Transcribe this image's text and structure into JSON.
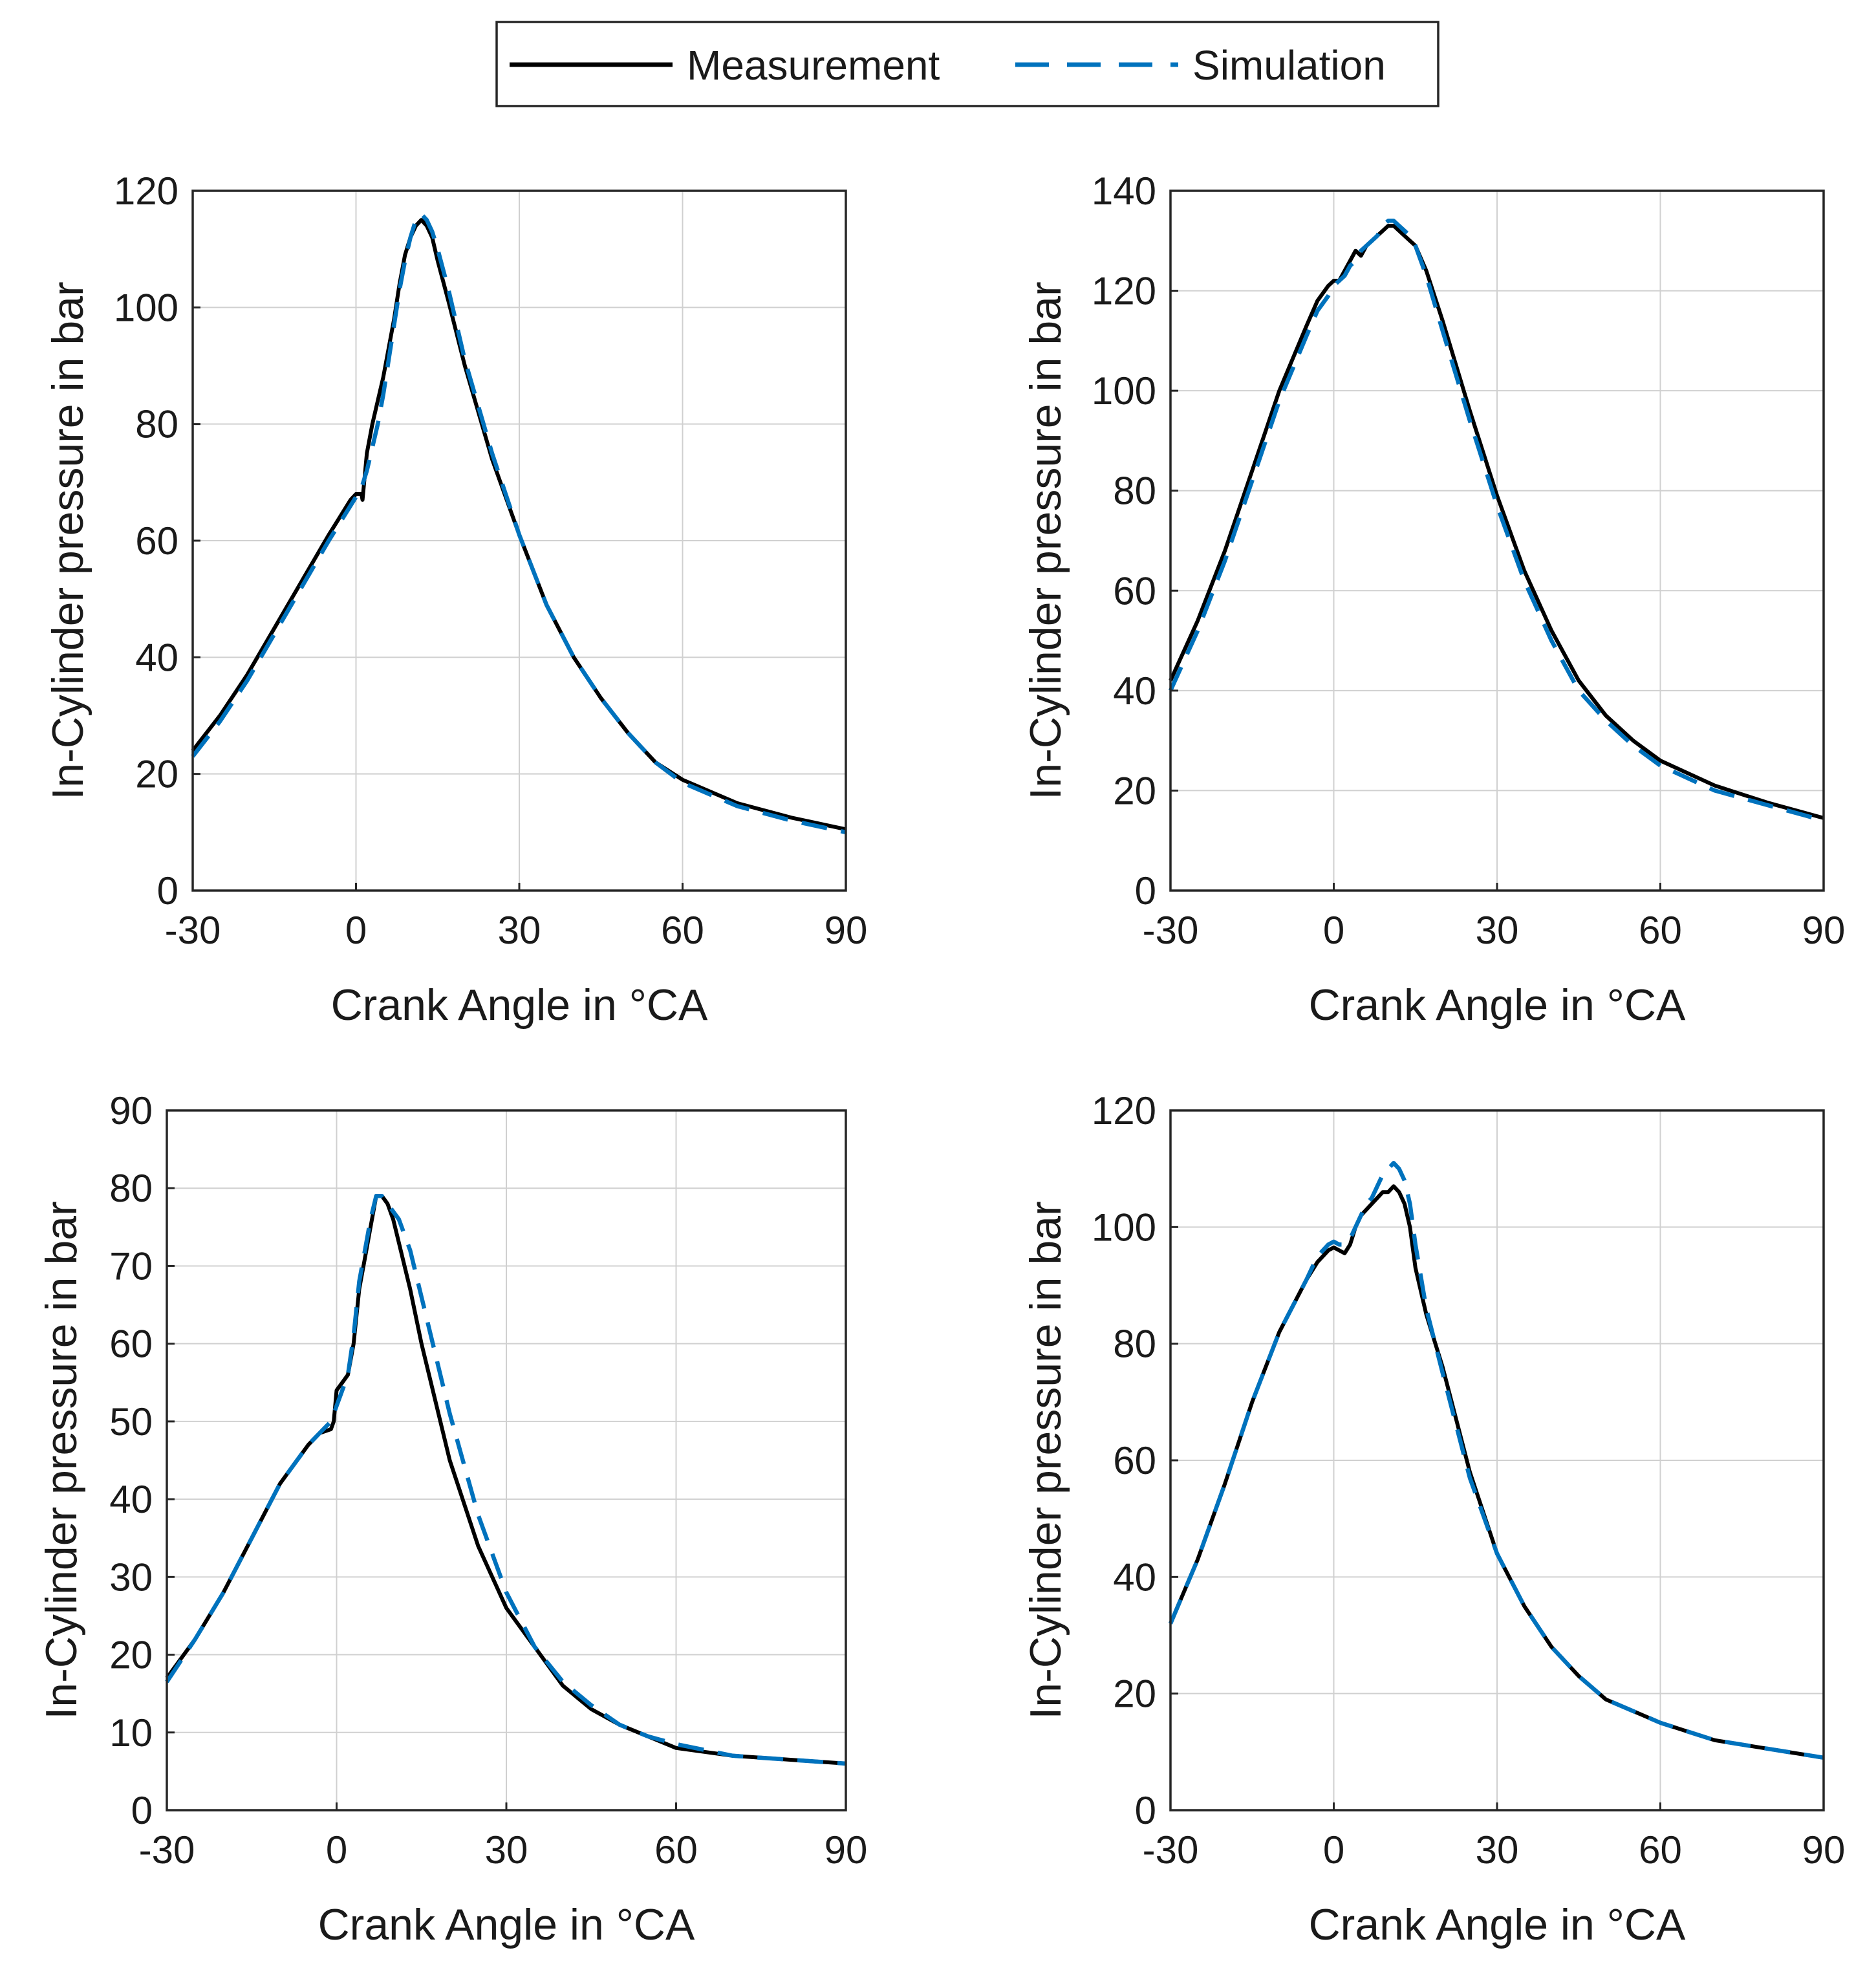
{
  "legend": {
    "entries": [
      {
        "name": "Measurement",
        "color": "#000000",
        "dash": "solid"
      },
      {
        "name": "Simulation",
        "color": "#0072BD",
        "dash": "dashed"
      }
    ]
  },
  "chart_data": [
    {
      "type": "line",
      "position": "top-left",
      "xlabel": "Crank Angle in °CA",
      "ylabel": "In-Cylinder pressure in bar",
      "xlim": [
        -30,
        90
      ],
      "ylim": [
        0,
        120
      ],
      "xticks": [
        "-30",
        "0",
        "30",
        "60",
        "90"
      ],
      "yticks": [
        "0",
        "20",
        "40",
        "60",
        "80",
        "100",
        "120"
      ],
      "grid": true,
      "series": [
        {
          "name": "Measurement",
          "color": "#000000",
          "dash": "solid",
          "x": [
            -30,
            -25,
            -20,
            -15,
            -10,
            -5,
            -3,
            -1,
            0,
            1,
            1.2,
            2,
            3,
            4,
            5,
            6,
            7,
            8,
            9,
            10,
            11,
            12,
            13,
            14,
            15,
            17,
            20,
            25,
            30,
            35,
            40,
            45,
            50,
            55,
            60,
            70,
            80,
            90
          ],
          "y": [
            24,
            30,
            37,
            45,
            53,
            61,
            64,
            67,
            68,
            68,
            67,
            75,
            80,
            84,
            88,
            93,
            98,
            104,
            109,
            112,
            114,
            115,
            114,
            112,
            108,
            101,
            90,
            74,
            61,
            49,
            40,
            33,
            27,
            22,
            19,
            15,
            12.5,
            10.5
          ]
        },
        {
          "name": "Simulation",
          "color": "#0072BD",
          "dash": "dashed",
          "x": [
            -30,
            -25,
            -20,
            -15,
            -10,
            -5,
            -3,
            -1,
            0,
            1,
            2,
            3,
            4,
            5,
            6,
            7,
            8,
            9,
            10,
            11,
            12,
            13,
            14,
            15,
            17,
            20,
            25,
            30,
            35,
            40,
            45,
            50,
            55,
            60,
            70,
            80,
            90
          ],
          "y": [
            23,
            29,
            36,
            44,
            52,
            60,
            63,
            66,
            67.5,
            69,
            72,
            76,
            80,
            85,
            91,
            97,
            103,
            108,
            112,
            115,
            116,
            115,
            113,
            110,
            103,
            91,
            75,
            61,
            49,
            40,
            33,
            27,
            22,
            18.5,
            14.5,
            12,
            10
          ]
        }
      ]
    },
    {
      "type": "line",
      "position": "top-right",
      "xlabel": "Crank Angle in °CA",
      "ylabel": "In-Cylinder pressure in bar",
      "xlim": [
        -30,
        90
      ],
      "ylim": [
        0,
        140
      ],
      "xticks": [
        "-30",
        "0",
        "30",
        "60",
        "90"
      ],
      "yticks": [
        "0",
        "20",
        "40",
        "60",
        "80",
        "100",
        "120",
        "140"
      ],
      "grid": true,
      "series": [
        {
          "name": "Measurement",
          "color": "#000000",
          "dash": "solid",
          "x": [
            -30,
            -25,
            -20,
            -15,
            -10,
            -5,
            -3,
            -1,
            0,
            1,
            2,
            3,
            4,
            5,
            6,
            7,
            8,
            9,
            10,
            11,
            12,
            13,
            14,
            15,
            17,
            20,
            25,
            30,
            35,
            40,
            45,
            50,
            55,
            60,
            70,
            80,
            90
          ],
          "y": [
            42,
            54,
            68,
            84,
            100,
            113,
            118,
            121,
            122,
            122,
            124,
            126,
            128,
            127,
            129,
            130,
            131,
            132,
            133,
            133,
            132,
            131,
            130,
            129,
            124,
            114,
            96,
            79,
            64,
            52,
            42,
            35,
            30,
            26,
            21,
            17.5,
            14.5
          ]
        },
        {
          "name": "Simulation",
          "color": "#0072BD",
          "dash": "dashed",
          "x": [
            -30,
            -25,
            -20,
            -15,
            -10,
            -5,
            -3,
            -1,
            0,
            1,
            2,
            3,
            4,
            5,
            6,
            7,
            8,
            9,
            10,
            11,
            12,
            13,
            14,
            15,
            17,
            20,
            25,
            30,
            35,
            40,
            45,
            50,
            55,
            60,
            70,
            80,
            90
          ],
          "y": [
            40,
            52,
            66,
            82,
            98,
            111,
            116,
            119,
            121,
            122,
            123,
            125,
            126,
            128,
            129,
            130,
            131,
            133,
            134,
            134,
            133,
            132,
            131,
            129,
            123,
            112,
            94,
            77,
            62,
            50,
            40,
            34,
            29,
            25,
            20,
            17,
            14
          ]
        }
      ]
    },
    {
      "type": "line",
      "position": "bottom-left",
      "xlabel": "Crank Angle in °CA",
      "ylabel": "In-Cylinder pressure in bar",
      "xlim": [
        -30,
        90
      ],
      "ylim": [
        0,
        90
      ],
      "xticks": [
        "-30",
        "0",
        "30",
        "60",
        "90"
      ],
      "yticks": [
        "0",
        "10",
        "20",
        "30",
        "40",
        "50",
        "60",
        "70",
        "80",
        "90"
      ],
      "grid": true,
      "series": [
        {
          "name": "Measurement",
          "color": "#000000",
          "dash": "solid",
          "x": [
            -30,
            -25,
            -20,
            -15,
            -10,
            -5,
            -3,
            -1,
            -0.5,
            0,
            1,
            2,
            3,
            4,
            5,
            6,
            7,
            8,
            9,
            10,
            11,
            13,
            15,
            17,
            20,
            25,
            30,
            35,
            40,
            45,
            50,
            55,
            60,
            70,
            80,
            90
          ],
          "y": [
            17,
            22,
            28,
            35,
            42,
            47,
            48.5,
            49,
            50,
            54,
            55,
            56,
            60,
            67,
            71,
            75,
            79,
            79,
            78,
            76,
            73,
            67,
            60,
            54,
            45,
            34,
            26,
            21,
            16,
            13,
            11,
            9.5,
            8,
            7,
            6.5,
            6
          ]
        },
        {
          "name": "Simulation",
          "color": "#0072BD",
          "dash": "dashed",
          "x": [
            -30,
            -25,
            -20,
            -15,
            -10,
            -5,
            -3,
            -1,
            0,
            1,
            2,
            3,
            4,
            5,
            6,
            7,
            8,
            9,
            10,
            11,
            13,
            15,
            17,
            20,
            25,
            30,
            35,
            40,
            45,
            50,
            55,
            60,
            70,
            80,
            90
          ],
          "y": [
            16.5,
            22,
            28,
            35,
            42,
            47,
            48.5,
            50,
            52,
            54,
            56,
            61,
            68,
            72,
            76,
            79,
            79,
            78,
            77,
            76,
            72,
            66,
            60,
            51,
            38,
            28,
            21,
            16.5,
            13.5,
            11,
            9.5,
            8.5,
            7,
            6.5,
            6
          ]
        }
      ]
    },
    {
      "type": "line",
      "position": "bottom-right",
      "xlabel": "Crank Angle in °CA",
      "ylabel": "In-Cylinder pressure in bar",
      "xlim": [
        -30,
        90
      ],
      "ylim": [
        0,
        120
      ],
      "xticks": [
        "-30",
        "0",
        "30",
        "60",
        "90"
      ],
      "yticks": [
        "0",
        "20",
        "40",
        "60",
        "80",
        "100",
        "120"
      ],
      "grid": true,
      "series": [
        {
          "name": "Measurement",
          "color": "#000000",
          "dash": "solid",
          "x": [
            -30,
            -25,
            -20,
            -15,
            -10,
            -5,
            -3,
            -1,
            0,
            1,
            2,
            3,
            4,
            5,
            6,
            7,
            8,
            9,
            10,
            11,
            12,
            13,
            14,
            15,
            17,
            20,
            25,
            30,
            35,
            40,
            45,
            50,
            55,
            60,
            70,
            80,
            90
          ],
          "y": [
            32,
            43,
            56,
            70,
            82,
            91,
            94,
            96,
            96.5,
            96,
            95.5,
            97,
            100,
            102,
            103,
            104,
            105,
            106,
            106,
            107,
            106,
            104,
            100,
            93,
            85,
            76,
            58,
            44,
            35,
            28,
            23,
            19,
            17,
            15,
            12,
            10.5,
            9
          ]
        },
        {
          "name": "Simulation",
          "color": "#0072BD",
          "dash": "dashed",
          "x": [
            -30,
            -25,
            -20,
            -15,
            -10,
            -5,
            -3,
            -1,
            0,
            1,
            2,
            3,
            4,
            5,
            6,
            7,
            8,
            9,
            10,
            11,
            12,
            13,
            14,
            15,
            17,
            20,
            25,
            30,
            35,
            40,
            45,
            50,
            55,
            60,
            70,
            80,
            90
          ],
          "y": [
            32,
            43,
            56,
            70,
            82,
            91,
            95,
            97,
            97.5,
            97,
            97,
            98,
            100,
            102,
            104,
            105,
            107,
            109,
            110,
            111,
            110,
            108,
            104,
            97,
            86,
            75,
            57,
            44,
            35,
            28,
            23,
            19,
            17,
            15,
            12,
            10.5,
            9
          ]
        }
      ]
    }
  ]
}
